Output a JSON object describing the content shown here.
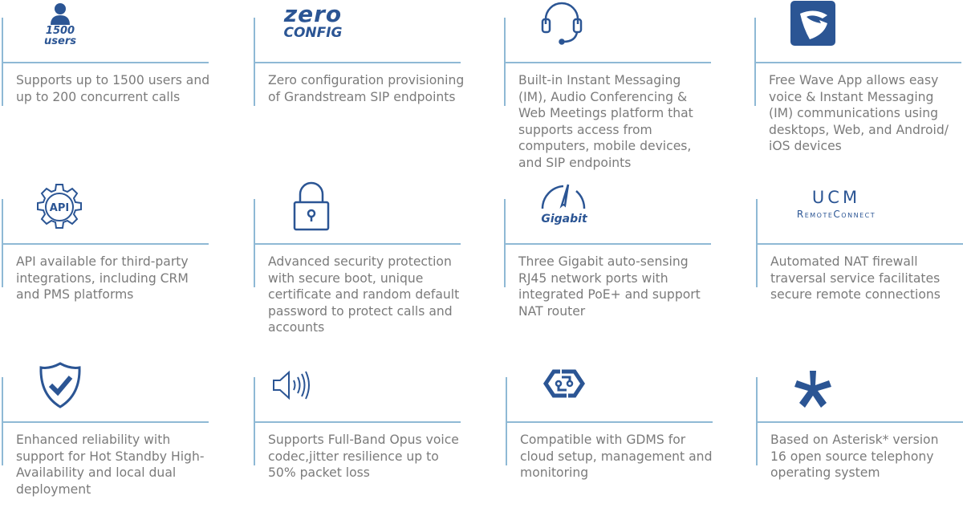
{
  "colors": {
    "icon": "#2b5594",
    "divider": "#8fb9d5",
    "text": "#7b7b7b"
  },
  "features": [
    {
      "icon": "user-icon",
      "icon_text": [
        "1500",
        "users"
      ],
      "text": "Supports up to 1500 users and up to 200 concurrent calls"
    },
    {
      "icon": "zero-config-logo",
      "icon_text": [
        "zero",
        "CONFIG"
      ],
      "text": "Zero configuration provisioning of Grandstream SIP endpoints"
    },
    {
      "icon": "headset-icon",
      "text": "Built-in Instant Messaging (IM), Audio Conferencing & Web Meetings platform that supports access from computers, mobile devices, and SIP endpoints"
    },
    {
      "icon": "wave-app-icon",
      "text": "Free Wave App allows easy voice & Instant Messaging (IM) communications using desktops, Web, and Android/ iOS devices"
    },
    {
      "icon": "api-gear-icon",
      "icon_text": [
        "API"
      ],
      "text": "API available for third-party integrations, including CRM and PMS platforms"
    },
    {
      "icon": "padlock-icon",
      "text": "Advanced security protection with secure boot, unique certificate and random default password to protect calls and accounts"
    },
    {
      "icon": "gigabit-gauge-icon",
      "icon_text": [
        "Gigabit"
      ],
      "text": "Three Gigabit auto-sensing RJ45 network ports with integrated PoE+ and support NAT router"
    },
    {
      "icon": "ucm-remoteconnect-logo",
      "icon_text": [
        "UCM",
        "RemoteConnect"
      ],
      "text": "Automated NAT firewall traversal service facilitates secure remote connections"
    },
    {
      "icon": "shield-check-icon",
      "text": "Enhanced reliability with support for Hot Standby High-Availability and local dual deployment"
    },
    {
      "icon": "speaker-icon",
      "text": "Supports Full-Band Opus voice codec,jitter resilience up to 50% packet loss"
    },
    {
      "icon": "gdms-icon",
      "text": "Compatible with GDMS for cloud setup, management and monitoring"
    },
    {
      "icon": "asterisk-icon",
      "text": "Based on Asterisk* version 16 open source telephony operating system"
    }
  ]
}
